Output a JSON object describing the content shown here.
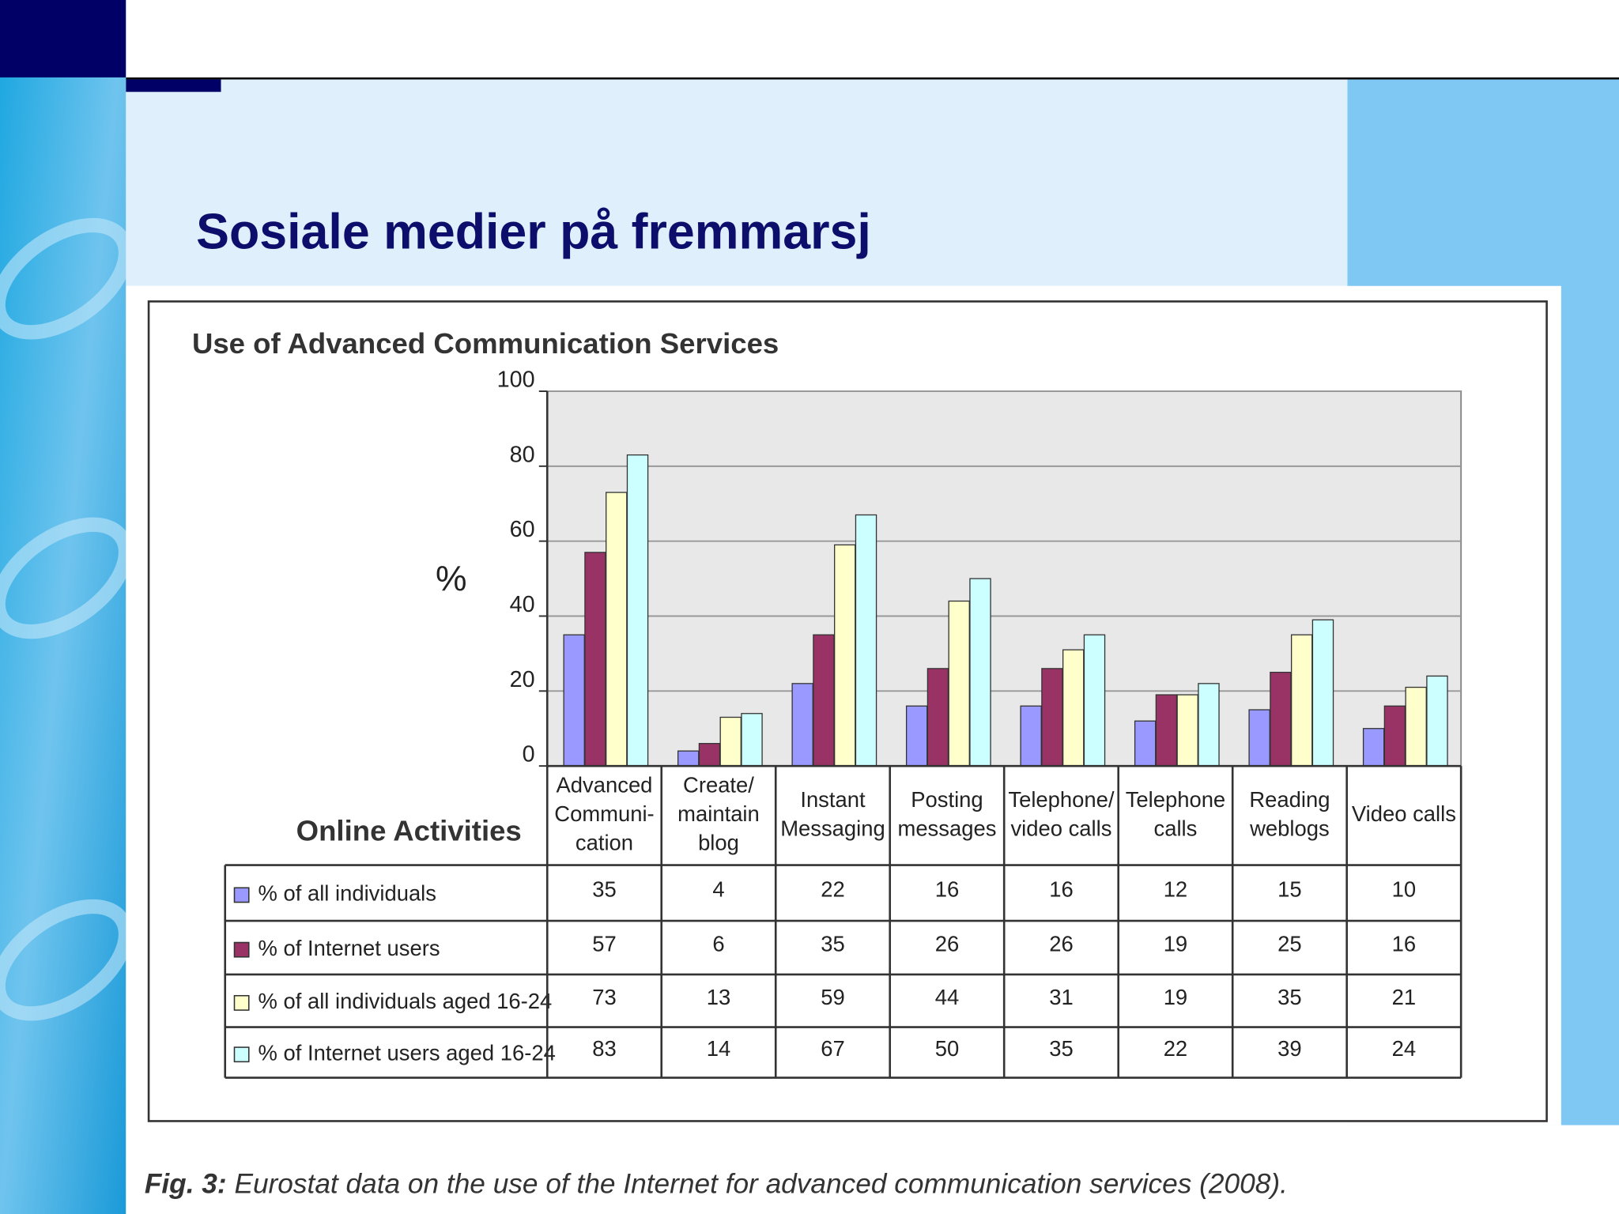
{
  "slide_title": "Sosiale medier på fremmarsj",
  "caption_label": "Fig. 3:",
  "caption": "Eurostat data on the use of the Internet for advanced communication services (2008).",
  "chart_data": {
    "type": "bar",
    "title": "Use of Advanced Communication Services",
    "y_label": "%",
    "x_label": "Online Activities",
    "categories": [
      [
        "Advanced",
        "Communi-",
        "cation"
      ],
      [
        "Create/",
        "maintain",
        "blog"
      ],
      [
        "Instant",
        "Messaging"
      ],
      [
        "Posting",
        "messages"
      ],
      [
        "Telephone/",
        "video calls"
      ],
      [
        "Telephone",
        "calls"
      ],
      [
        "Reading",
        "weblogs"
      ],
      [
        "Video calls"
      ]
    ],
    "series": [
      {
        "name": "% of all individuals",
        "color": "#9999ff",
        "values": [
          35,
          4,
          22,
          16,
          16,
          12,
          15,
          10
        ]
      },
      {
        "name": "% of Internet users",
        "color": "#993366",
        "values": [
          57,
          6,
          35,
          26,
          26,
          19,
          25,
          16
        ]
      },
      {
        "name": "% of all individuals aged 16-24",
        "color": "#ffffcc",
        "values": [
          73,
          13,
          59,
          44,
          31,
          19,
          35,
          21
        ]
      },
      {
        "name": "% of Internet users aged 16-24",
        "color": "#ccffff",
        "values": [
          83,
          14,
          67,
          50,
          35,
          22,
          39,
          24
        ]
      }
    ],
    "ylim": [
      0,
      100
    ],
    "yticks": [
      0,
      20,
      40,
      60,
      80,
      100
    ],
    "grid": true
  }
}
